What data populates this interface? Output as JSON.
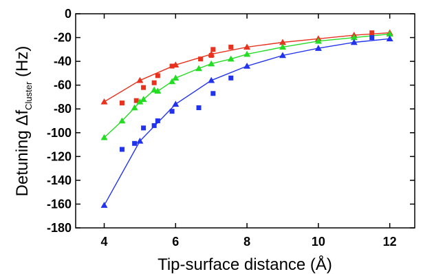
{
  "chart_data": {
    "type": "scatter",
    "xlabel": "Tip-surface distance (Å)",
    "ylabel": {
      "prefix": "Detuning ",
      "delta": "Δ",
      "f": "f",
      "subscript": "Cluster",
      "suffix": " (Hz)"
    },
    "xlim": [
      3.2,
      12.7
    ],
    "ylim": [
      -180,
      0
    ],
    "x_ticks": [
      4,
      6,
      8,
      10,
      12
    ],
    "y_ticks": [
      0,
      -20,
      -40,
      -60,
      -80,
      -100,
      -120,
      -140,
      -160,
      -180
    ],
    "grid": false,
    "colors": {
      "red": "#e8321e",
      "green": "#22dd22",
      "blue": "#2233ee"
    },
    "series": [
      {
        "key": "red_fit",
        "color": "#e8321e",
        "marker": "triangle",
        "line": true,
        "points": [
          [
            4,
            -74
          ],
          [
            5,
            -56
          ],
          [
            6,
            -43
          ],
          [
            7,
            -34
          ],
          [
            8,
            -28
          ],
          [
            9,
            -24
          ],
          [
            10,
            -21
          ],
          [
            11,
            -18
          ],
          [
            12,
            -16
          ]
        ]
      },
      {
        "key": "red_data",
        "color": "#e8321e",
        "marker": "square",
        "line": false,
        "points": [
          [
            4.5,
            -75
          ],
          [
            4.9,
            -73
          ],
          [
            5.1,
            -62
          ],
          [
            5.4,
            -58
          ],
          [
            5.5,
            -52
          ],
          [
            5.9,
            -44
          ],
          [
            6.7,
            -38
          ],
          [
            7.0,
            -35
          ],
          [
            7.05,
            -30
          ],
          [
            7.55,
            -28
          ],
          [
            11.5,
            -16
          ]
        ]
      },
      {
        "key": "green_fit",
        "color": "#22dd22",
        "marker": "triangle",
        "line": true,
        "points": [
          [
            4,
            -104
          ],
          [
            4.5,
            -90
          ],
          [
            4.85,
            -79
          ],
          [
            5,
            -74
          ],
          [
            5.1,
            -72
          ],
          [
            5.4,
            -64
          ],
          [
            5.5,
            -65
          ],
          [
            5.9,
            -57
          ],
          [
            6,
            -54
          ],
          [
            6.65,
            -46
          ],
          [
            7,
            -42
          ],
          [
            7.55,
            -38
          ],
          [
            8,
            -34
          ],
          [
            9,
            -28
          ],
          [
            10,
            -23
          ],
          [
            11,
            -20
          ],
          [
            12,
            -17
          ]
        ]
      },
      {
        "key": "blue_fit",
        "color": "#2233ee",
        "marker": "triangle",
        "line": true,
        "points": [
          [
            4,
            -161
          ],
          [
            5,
            -107
          ],
          [
            6,
            -76
          ],
          [
            7,
            -56
          ],
          [
            8,
            -44
          ],
          [
            9,
            -35
          ],
          [
            10,
            -29
          ],
          [
            11,
            -24
          ],
          [
            12,
            -21
          ]
        ]
      },
      {
        "key": "blue_data",
        "color": "#2233ee",
        "marker": "square",
        "line": false,
        "points": [
          [
            4.5,
            -114
          ],
          [
            4.85,
            -109
          ],
          [
            5.1,
            -96
          ],
          [
            5.4,
            -94
          ],
          [
            5.5,
            -90
          ],
          [
            5.9,
            -82
          ],
          [
            6.65,
            -79
          ],
          [
            7.05,
            -67
          ],
          [
            7.55,
            -54
          ],
          [
            11.5,
            -20
          ]
        ]
      }
    ]
  }
}
